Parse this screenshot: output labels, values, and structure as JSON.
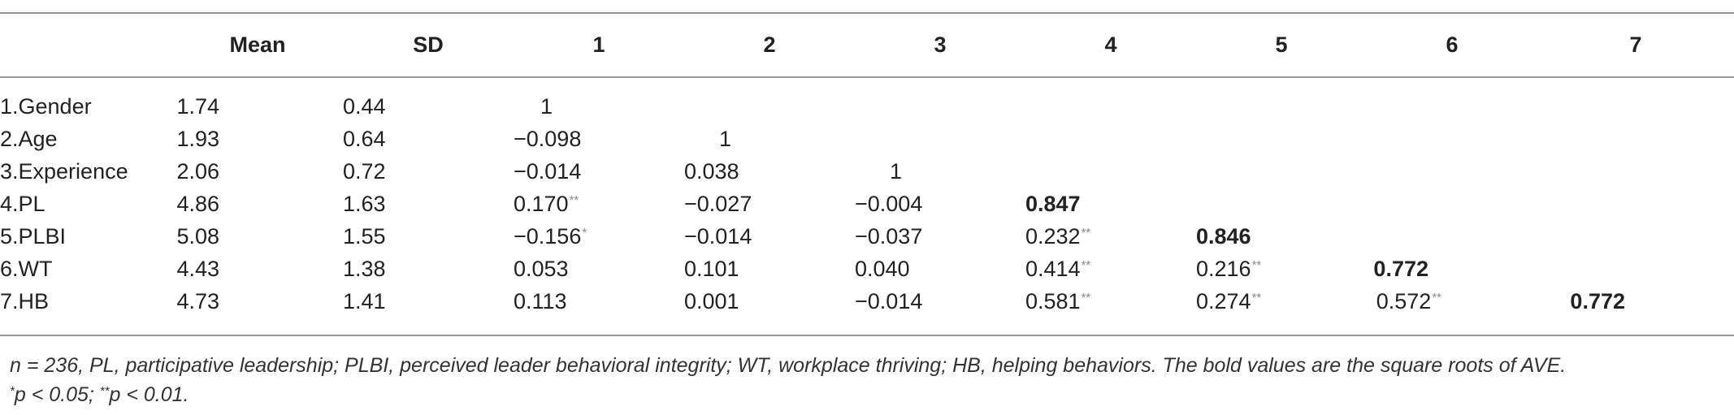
{
  "table": {
    "columns": [
      "",
      "Mean",
      "SD",
      "1",
      "2",
      "3",
      "4",
      "5",
      "6",
      "7"
    ],
    "rows": [
      {
        "variable": "1.Gender",
        "mean": "1.74",
        "sd": "0.44",
        "cells": [
          {
            "v": "1",
            "sig": "",
            "bold": false
          },
          null,
          null,
          null,
          null,
          null,
          null
        ]
      },
      {
        "variable": "2.Age",
        "mean": "1.93",
        "sd": "0.64",
        "cells": [
          {
            "v": "−0.098",
            "sig": "",
            "bold": false
          },
          {
            "v": "1",
            "sig": "",
            "bold": false
          },
          null,
          null,
          null,
          null,
          null
        ]
      },
      {
        "variable": "3.Experience",
        "mean": "2.06",
        "sd": "0.72",
        "cells": [
          {
            "v": "−0.014",
            "sig": "",
            "bold": false
          },
          {
            "v": "0.038",
            "sig": "",
            "bold": false
          },
          {
            "v": "1",
            "sig": "",
            "bold": false
          },
          null,
          null,
          null,
          null
        ]
      },
      {
        "variable": "4.PL",
        "mean": "4.86",
        "sd": "1.63",
        "cells": [
          {
            "v": "0.170",
            "sig": "**",
            "bold": false
          },
          {
            "v": "−0.027",
            "sig": "",
            "bold": false
          },
          {
            "v": "−0.004",
            "sig": "",
            "bold": false
          },
          {
            "v": "0.847",
            "sig": "",
            "bold": true
          },
          null,
          null,
          null
        ]
      },
      {
        "variable": "5.PLBI",
        "mean": "5.08",
        "sd": "1.55",
        "cells": [
          {
            "v": "−0.156",
            "sig": "*",
            "bold": false
          },
          {
            "v": "−0.014",
            "sig": "",
            "bold": false
          },
          {
            "v": "−0.037",
            "sig": "",
            "bold": false
          },
          {
            "v": "0.232",
            "sig": "**",
            "bold": false
          },
          {
            "v": "0.846",
            "sig": "",
            "bold": true
          },
          null,
          null
        ]
      },
      {
        "variable": "6.WT",
        "mean": "4.43",
        "sd": "1.38",
        "cells": [
          {
            "v": "0.053",
            "sig": "",
            "bold": false
          },
          {
            "v": "0.101",
            "sig": "",
            "bold": false
          },
          {
            "v": "0.040",
            "sig": "",
            "bold": false
          },
          {
            "v": "0.414",
            "sig": "**",
            "bold": false
          },
          {
            "v": "0.216",
            "sig": "**",
            "bold": false
          },
          {
            "v": "0.772",
            "sig": "",
            "bold": true
          },
          null
        ]
      },
      {
        "variable": "7.HB",
        "mean": "4.73",
        "sd": "1.41",
        "cells": [
          {
            "v": "0.113",
            "sig": "",
            "bold": false
          },
          {
            "v": "0.001",
            "sig": "",
            "bold": false
          },
          {
            "v": "−0.014",
            "sig": "",
            "bold": false
          },
          {
            "v": "0.581",
            "sig": "**",
            "bold": false
          },
          {
            "v": "0.274",
            "sig": "**",
            "bold": false
          },
          {
            "v": "0.572",
            "sig": "**",
            "bold": false
          },
          {
            "v": "0.772",
            "sig": "",
            "bold": true
          }
        ]
      }
    ]
  },
  "notes": {
    "line1": "n = 236, PL, participative leadership; PLBI, perceived leader behavioral integrity; WT, workplace thriving; HB, helping behaviors. The bold values are the square roots of AVE.",
    "line2_mark1": "*",
    "line2_text1": "p < 0.05; ",
    "line2_mark2": "**",
    "line2_text2": "p < 0.01."
  }
}
